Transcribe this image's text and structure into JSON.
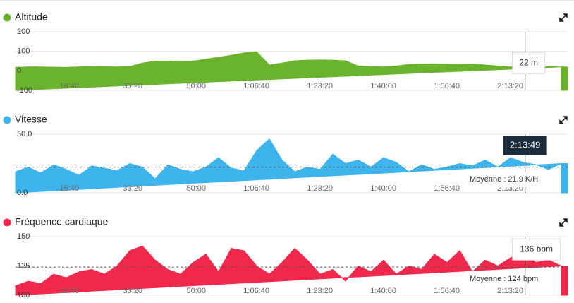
{
  "chart_data": [
    {
      "type": "area",
      "title": "Altitude",
      "color": "#6ab42d",
      "x": [
        0,
        200,
        400,
        600,
        800,
        1000,
        1200,
        1400,
        1600,
        1800,
        2000,
        2200,
        2400,
        2600,
        2800,
        3000,
        3200,
        3400,
        3600,
        3800,
        4000,
        4200,
        4400,
        4600,
        4800,
        5000,
        5200,
        5400,
        5600,
        5800,
        6000,
        6200,
        6400,
        6600,
        6800,
        7000,
        7200,
        7400,
        7600,
        7800,
        8000,
        8200,
        8400,
        8600
      ],
      "series": [
        {
          "color": "#6ab42d",
          "values": [
            18,
            20,
            20,
            19,
            18,
            20,
            22,
            21,
            20,
            22,
            40,
            50,
            50,
            48,
            50,
            60,
            70,
            80,
            92,
            98,
            30,
            40,
            52,
            55,
            56,
            55,
            52,
            25,
            22,
            20,
            25,
            33,
            35,
            36,
            34,
            33,
            35,
            30,
            25,
            20,
            22,
            20,
            22,
            20
          ]
        }
      ],
      "xlim": [
        0,
        8700
      ],
      "xticks": [
        {
          "value": 1000,
          "label": "16:40"
        },
        {
          "value": 2000,
          "label": "33:20"
        },
        {
          "value": 3000,
          "label": "50:00"
        },
        {
          "value": 4000,
          "label": "1:06:40"
        },
        {
          "value": 5000,
          "label": "1:23:20"
        },
        {
          "value": 6000,
          "label": "1:40:00"
        },
        {
          "value": 7000,
          "label": "1:56:40"
        },
        {
          "value": 8000,
          "label": "2:13:20"
        }
      ],
      "ylim": [
        -100,
        200
      ],
      "yticks": [
        -100,
        0,
        100,
        200
      ],
      "grid": true,
      "cursor_value": 22,
      "cursor_label": "22 m"
    },
    {
      "type": "area",
      "title": "Vitesse",
      "color": "#3db4ec",
      "x": [
        0,
        200,
        400,
        600,
        800,
        1000,
        1200,
        1400,
        1600,
        1800,
        2000,
        2200,
        2400,
        2600,
        2800,
        3000,
        3200,
        3400,
        3600,
        3800,
        4000,
        4200,
        4400,
        4600,
        4800,
        5000,
        5200,
        5400,
        5600,
        5800,
        6000,
        6200,
        6400,
        6600,
        6800,
        7000,
        7200,
        7400,
        7600,
        7800,
        8000,
        8200,
        8400,
        8600
      ],
      "series": [
        {
          "color": "#3db4ec",
          "values": [
            18,
            22,
            17,
            24,
            20,
            15,
            23,
            21,
            19,
            25,
            22,
            12,
            24,
            20,
            18,
            22,
            30,
            21,
            19,
            36,
            46,
            28,
            18,
            22,
            20,
            33,
            25,
            28,
            22,
            30,
            26,
            18,
            24,
            20,
            22,
            25,
            23,
            28,
            22,
            30,
            26,
            24,
            20,
            25
          ]
        }
      ],
      "xlim": [
        0,
        8700
      ],
      "xticks": [
        {
          "value": 1000,
          "label": "16:40"
        },
        {
          "value": 2000,
          "label": "33:20"
        },
        {
          "value": 3000,
          "label": "50:00"
        },
        {
          "value": 4000,
          "label": "1:06:40"
        },
        {
          "value": 5000,
          "label": "1:23:20"
        },
        {
          "value": 6000,
          "label": "1:40:00"
        },
        {
          "value": 7000,
          "label": "1:56:40"
        },
        {
          "value": 8000,
          "label": "2:13:20"
        }
      ],
      "ylim": [
        0,
        50
      ],
      "yticks": [
        {
          "value": 0,
          "label": "0.0"
        },
        {
          "value": 50,
          "label": "50.0"
        }
      ],
      "grid": true,
      "cursor_x": {
        "value": 8029,
        "label": "2:13:49"
      },
      "average": {
        "value": 21.9,
        "label": "Moyenne : 21.9 K/H"
      }
    },
    {
      "type": "area",
      "title": "Fréquence cardiaque",
      "color": "#f0284c",
      "x": [
        0,
        200,
        400,
        600,
        800,
        1000,
        1200,
        1400,
        1600,
        1800,
        2000,
        2200,
        2400,
        2600,
        2800,
        3000,
        3200,
        3400,
        3600,
        3800,
        4000,
        4200,
        4400,
        4600,
        4800,
        5000,
        5200,
        5400,
        5600,
        5800,
        6000,
        6200,
        6400,
        6600,
        6800,
        7000,
        7200,
        7400,
        7600,
        7800,
        8000,
        8200,
        8400,
        8600
      ],
      "series": [
        {
          "color": "#f0284c",
          "values": [
            108,
            112,
            110,
            118,
            115,
            120,
            122,
            118,
            125,
            138,
            142,
            130,
            122,
            118,
            128,
            135,
            120,
            140,
            138,
            125,
            118,
            128,
            140,
            130,
            118,
            122,
            112,
            125,
            120,
            130,
            118,
            125,
            122,
            135,
            128,
            138,
            120,
            130,
            125,
            132,
            136,
            128,
            130,
            125
          ]
        }
      ],
      "xlim": [
        0,
        8700
      ],
      "xticks": [
        {
          "value": 1000,
          "label": "16:40"
        },
        {
          "value": 2000,
          "label": "33:20"
        },
        {
          "value": 3000,
          "label": "50:00"
        },
        {
          "value": 4000,
          "label": "1:06:40"
        },
        {
          "value": 5000,
          "label": "1:23:20"
        },
        {
          "value": 6000,
          "label": "1:40:00"
        },
        {
          "value": 7000,
          "label": "1:56:40"
        },
        {
          "value": 8000,
          "label": "2:13:20"
        }
      ],
      "ylim": [
        100,
        150
      ],
      "yticks": [
        100,
        125,
        150
      ],
      "grid": true,
      "cursor_value": 136,
      "cursor_label": "136 bpm",
      "average": {
        "value": 124,
        "label": "Moyenne : 124 bpm"
      }
    }
  ]
}
